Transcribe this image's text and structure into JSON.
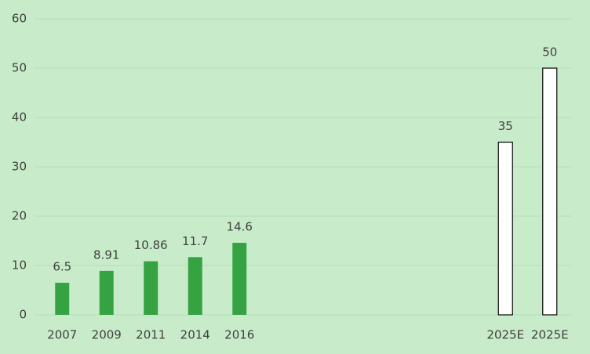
{
  "chart_data": {
    "type": "bar",
    "categories": [
      "2007",
      "2009",
      "2011",
      "2014",
      "2016",
      null,
      null,
      null,
      null,
      null,
      "2025E",
      "2025E"
    ],
    "values": [
      6.5,
      8.91,
      10.86,
      11.7,
      14.6,
      null,
      null,
      null,
      null,
      null,
      35,
      50
    ],
    "colors": [
      "#35a342",
      "#35a342",
      "#35a342",
      "#35a342",
      "#35a342",
      null,
      null,
      null,
      null,
      null,
      "#ffffff",
      "#ffffff"
    ],
    "edgecolors": [
      null,
      null,
      null,
      null,
      null,
      null,
      null,
      null,
      null,
      null,
      "#000000",
      "#000000"
    ],
    "ylim": [
      0,
      60
    ],
    "yticks": [
      0,
      10,
      20,
      30,
      40,
      50,
      60
    ],
    "grid": true
  }
}
